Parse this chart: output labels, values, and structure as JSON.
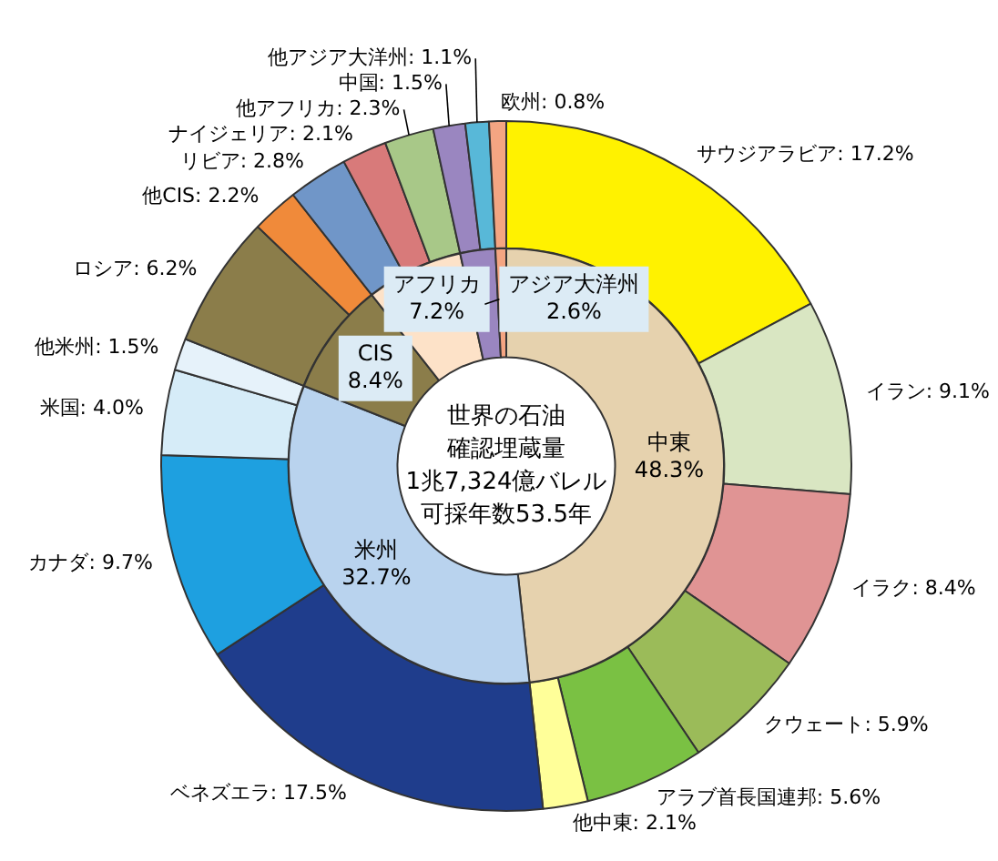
{
  "chart_data": [
    {
      "type": "donut",
      "title": "世界の石油確認埋蔵量",
      "subtitle": "1兆7,324億バレル",
      "annotations": [
        "可採年数53.5年"
      ],
      "categories": [
        "中東",
        "米州",
        "CIS",
        "アフリカ",
        "アジア大洋州",
        null
      ],
      "values": [
        48.3,
        32.7,
        8.4,
        7.2,
        2.6,
        0.8
      ],
      "value_labels": [
        "48.3%",
        "32.7%",
        "8.4%",
        "7.2%",
        "2.6%",
        null
      ],
      "colors": [
        "#e6d2ae",
        "#b9d3ee",
        "#8b7d4a",
        "#fde2c8",
        "#9a86c0",
        "#f4a582"
      ]
    },
    {
      "type": "donut",
      "categories": [
        "サウジアラビア",
        "イラン",
        "イラク",
        "クウェート",
        "アラブ首長国連邦",
        "他中東",
        "ベネズエラ",
        "カナダ",
        "米国",
        "他米州",
        "ロシア",
        "他CIS",
        "リビア",
        "ナイジェリア",
        "他アフリカ",
        "中国",
        "他アジア大洋州",
        "欧州"
      ],
      "values": [
        17.2,
        9.1,
        8.4,
        5.9,
        5.6,
        2.1,
        17.5,
        9.7,
        4.0,
        1.5,
        6.2,
        2.2,
        2.8,
        2.1,
        2.3,
        1.5,
        1.1,
        0.8
      ],
      "value_labels": [
        "17.2%",
        "9.1%",
        "8.4%",
        "5.9%",
        "5.6%",
        "2.1%",
        "17.5%",
        "9.7%",
        "4.0%",
        "1.5%",
        "6.2%",
        "2.2%",
        "2.8%",
        "2.1%",
        "2.3%",
        "1.5%",
        "1.1%",
        "0.8%"
      ],
      "colors": [
        "#fff200",
        "#d9e6c2",
        "#e09494",
        "#9bbb59",
        "#7ac143",
        "#ffff99",
        "#1f3d8c",
        "#1ea0e0",
        "#d6ecf8",
        "#e6f2fa",
        "#8b7d4a",
        "#f08a3a",
        "#7096c8",
        "#d87a7a",
        "#a8c888",
        "#9a86c0",
        "#58b8d8",
        "#f4a582"
      ]
    }
  ]
}
